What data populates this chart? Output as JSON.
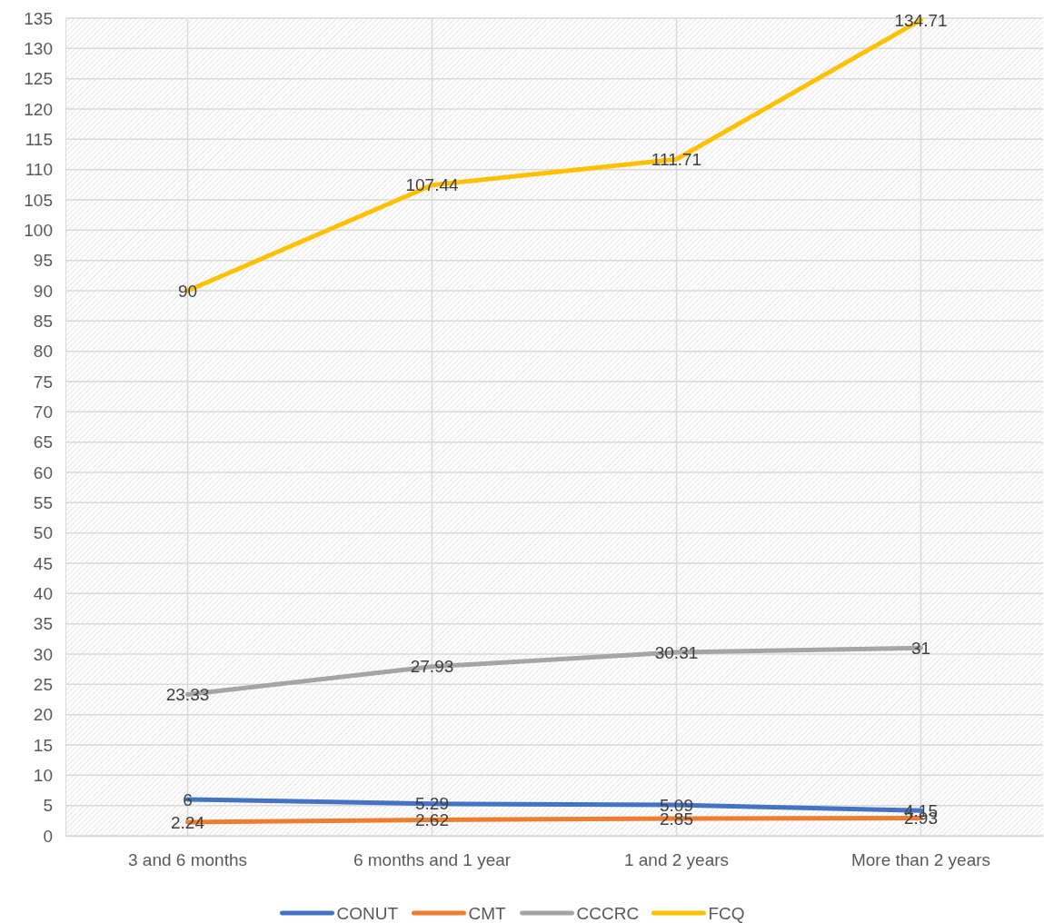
{
  "chart_data": {
    "type": "line",
    "categories": [
      "3 and 6 months",
      "6 months and 1 year",
      "1 and 2 years",
      "More than 2 years"
    ],
    "series": [
      {
        "name": "CONUT",
        "color": "#4472c4",
        "values": [
          6,
          5.29,
          5.09,
          4.15
        ]
      },
      {
        "name": "CMT",
        "color": "#ed7d31",
        "values": [
          2.24,
          2.62,
          2.85,
          2.93
        ]
      },
      {
        "name": "CCCRC",
        "color": "#a5a5a5",
        "values": [
          23.33,
          27.93,
          30.31,
          31
        ]
      },
      {
        "name": "FCQ",
        "color": "#ffc000",
        "values": [
          90,
          107.44,
          111.71,
          134.71
        ]
      }
    ],
    "ylim": [
      0,
      135
    ],
    "yticks": [
      0,
      5,
      10,
      15,
      20,
      25,
      30,
      35,
      40,
      45,
      50,
      55,
      60,
      65,
      70,
      75,
      80,
      85,
      90,
      95,
      100,
      105,
      110,
      115,
      120,
      125,
      130,
      135
    ],
    "grid": true,
    "legend": "bottom",
    "data_labels": true,
    "marker": "none",
    "line_style": "solid"
  }
}
